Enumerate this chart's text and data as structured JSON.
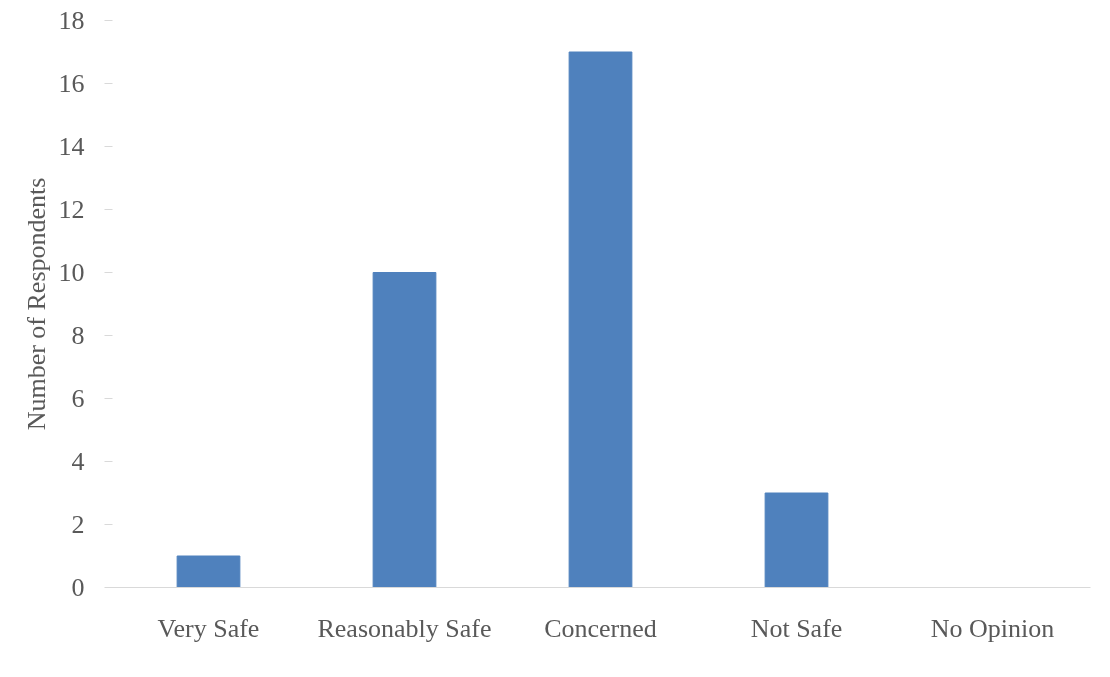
{
  "chart_data": {
    "type": "bar",
    "ylabel": "Number of Respondents",
    "categories": [
      "Very Safe",
      "Reasonably Safe",
      "Concerned",
      "Not Safe",
      "No Opinion"
    ],
    "values": [
      1,
      10,
      17,
      3,
      0
    ],
    "color": "#4f81bd",
    "ylim": [
      0,
      18
    ],
    "yticks": [
      0,
      2,
      4,
      6,
      8,
      10,
      12,
      14,
      16,
      18
    ],
    "grid": false
  }
}
